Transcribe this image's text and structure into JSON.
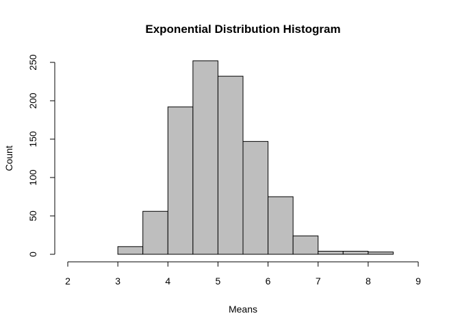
{
  "chart_data": {
    "type": "bar",
    "subtype": "histogram",
    "title": "Exponential Distribution Histogram",
    "xlabel": "Means",
    "ylabel": "Count",
    "xlim": [
      2,
      9
    ],
    "ylim": [
      0,
      250
    ],
    "x_ticks": [
      2,
      3,
      4,
      5,
      6,
      7,
      8,
      9
    ],
    "y_ticks": [
      0,
      50,
      100,
      150,
      200,
      250
    ],
    "bins": [
      {
        "start": 3.0,
        "end": 3.5,
        "count": 10
      },
      {
        "start": 3.5,
        "end": 4.0,
        "count": 56
      },
      {
        "start": 4.0,
        "end": 4.5,
        "count": 192
      },
      {
        "start": 4.5,
        "end": 5.0,
        "count": 252
      },
      {
        "start": 5.0,
        "end": 5.5,
        "count": 232
      },
      {
        "start": 5.5,
        "end": 6.0,
        "count": 147
      },
      {
        "start": 6.0,
        "end": 6.5,
        "count": 75
      },
      {
        "start": 6.5,
        "end": 7.0,
        "count": 24
      },
      {
        "start": 7.0,
        "end": 7.5,
        "count": 4
      },
      {
        "start": 7.5,
        "end": 8.0,
        "count": 4
      },
      {
        "start": 8.0,
        "end": 8.5,
        "count": 3
      }
    ],
    "bar_color": "#bebebe",
    "grid": false,
    "legend": "none"
  }
}
